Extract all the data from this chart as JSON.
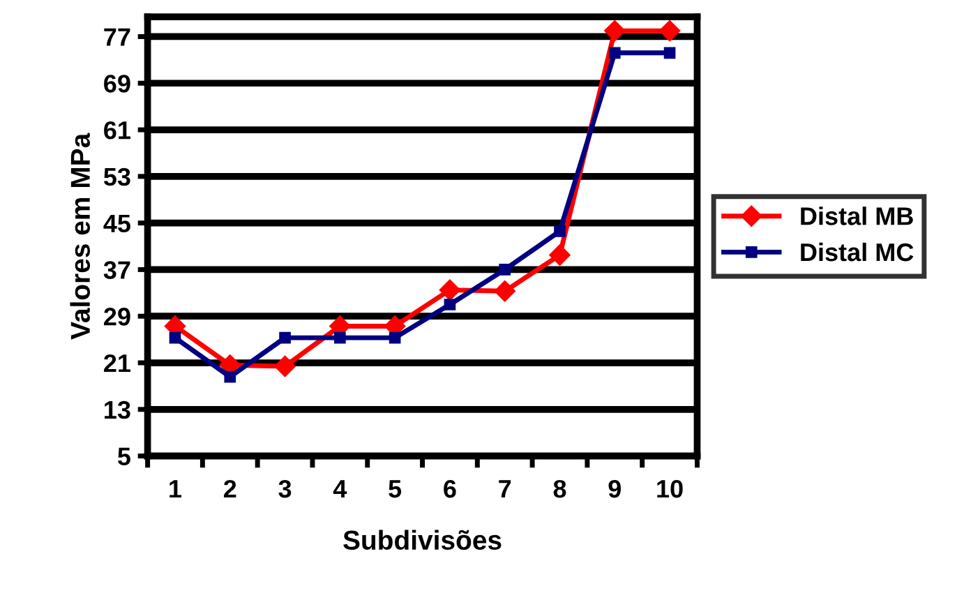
{
  "chart_data": {
    "type": "line",
    "xlabel": "Subdivisões",
    "ylabel": "Valores em MPa",
    "categories": [
      "1",
      "2",
      "3",
      "4",
      "5",
      "6",
      "7",
      "8",
      "9",
      "10"
    ],
    "series": [
      {
        "name": "Distal MB",
        "color": "#ff0000",
        "marker": "diamond",
        "values": [
          27.3,
          20.6,
          20.4,
          27.3,
          27.3,
          33.5,
          33.3,
          39.5,
          78,
          78
        ]
      },
      {
        "name": "Distal MC",
        "color": "#000080",
        "marker": "square",
        "values": [
          25.3,
          18.6,
          25.3,
          25.3,
          25.3,
          31,
          37,
          43.6,
          74.2,
          74.2
        ]
      }
    ],
    "ylim": [
      5,
      80.4
    ],
    "yticks": [
      5,
      13,
      21,
      29,
      37,
      45,
      53,
      61,
      69,
      77
    ],
    "grid": "y",
    "legend": "right",
    "line_style": "solid"
  }
}
